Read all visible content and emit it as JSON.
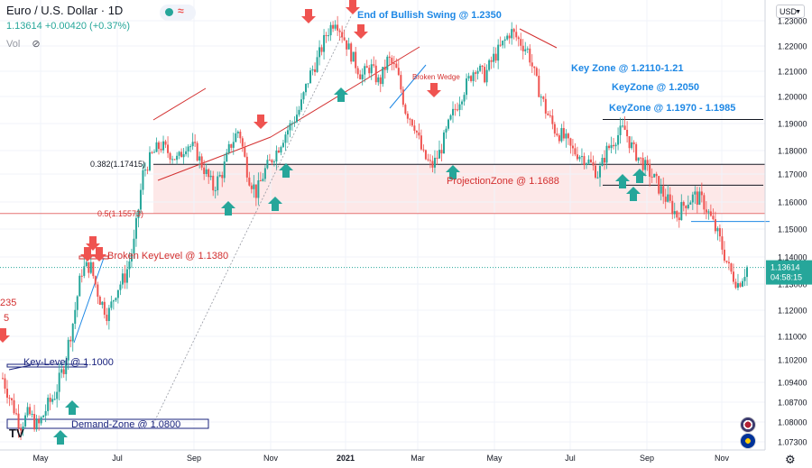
{
  "header": {
    "title": "Euro / U.S. Dollar · 1D",
    "change": "1.13614 +0.00420 (+0.37%)",
    "vol_label": "Vol"
  },
  "currency_selector": "USD",
  "colors": {
    "up": "#26a69a",
    "down": "#ef5350",
    "annotation_red": "#d32f2f",
    "annotation_blue": "#1e88e5",
    "navy": "#1a237e",
    "zone_fill": "#fde4e4"
  },
  "icons": [
    "eye-slash-icon",
    "tradingview-logo-icon",
    "gear-icon",
    "flag-usd-icon",
    "flag-eur-icon"
  ],
  "chart_data": {
    "type": "candlestick",
    "symbol": "EURUSD",
    "timeframe": "1D",
    "ylim": [
      1.068,
      1.234
    ],
    "y_ticks": [
      1.073,
      1.08,
      1.087,
      1.094,
      1.102,
      1.11,
      1.12,
      1.13,
      1.14,
      1.15,
      1.16,
      1.17,
      1.18,
      1.19,
      1.2,
      1.21,
      1.22,
      1.23
    ],
    "y_tick_labels": [
      "1.07300",
      "1.08000",
      "1.08700",
      "1.09400",
      "1.10200",
      "1.11000",
      "1.12000",
      "1.13000",
      "1.14000",
      "1.15000",
      "1.16000",
      "1.17000",
      "1.18000",
      "1.19000",
      "1.20000",
      "1.21000",
      "1.22000",
      "1.23000"
    ],
    "x_labels": [
      "May",
      "Jul",
      "Sep",
      "Nov",
      "2021",
      "Mar",
      "May",
      "Jul",
      "Sep",
      "Nov"
    ],
    "last_price": "1.13614",
    "countdown": "04:58:15",
    "price_path": [
      1.0955,
      1.087,
      1.079,
      1.083,
      1.078,
      1.085,
      1.09,
      1.1,
      1.115,
      1.135,
      1.137,
      1.125,
      1.118,
      1.128,
      1.133,
      1.145,
      1.17,
      1.178,
      1.182,
      1.179,
      1.176,
      1.183,
      1.18,
      1.172,
      1.165,
      1.17,
      1.182,
      1.188,
      1.17,
      1.163,
      1.172,
      1.178,
      1.185,
      1.19,
      1.196,
      1.208,
      1.215,
      1.225,
      1.231,
      1.223,
      1.215,
      1.208,
      1.212,
      1.205,
      1.215,
      1.21,
      1.195,
      1.19,
      1.178,
      1.173,
      1.18,
      1.19,
      1.198,
      1.205,
      1.212,
      1.208,
      1.215,
      1.22,
      1.226,
      1.222,
      1.218,
      1.205,
      1.195,
      1.188,
      1.185,
      1.18,
      1.178,
      1.175,
      1.17,
      1.18,
      1.185,
      1.188,
      1.18,
      1.175,
      1.17,
      1.165,
      1.16,
      1.155,
      1.16,
      1.162,
      1.16,
      1.153,
      1.145,
      1.135,
      1.13,
      1.1361
    ],
    "levels": [
      {
        "label": "0.382(1.17415)",
        "value": 1.17415
      },
      {
        "label": "0.5(1.15573)",
        "value": 1.15573
      }
    ],
    "annotations": [
      {
        "text": "End of Bullish Swing @ 1.2350"
      },
      {
        "text": "Key Zone           @           1.2110-1.21"
      },
      {
        "text": "KeyZone @ 1.2050"
      },
      {
        "text": "KeyZone @ 1.1970 - 1.1985"
      },
      {
        "text": "ProjectionZone @ 1.1688"
      },
      {
        "text": "Broken KeyLevel @ 1.1380"
      },
      {
        "text": "Key-Level @ 1.1000"
      },
      {
        "text": "Demand-Zone @ 1.0800"
      },
      {
        "text": "Broken Wedge"
      },
      {
        "text": "235"
      },
      {
        "text": "5"
      }
    ]
  }
}
